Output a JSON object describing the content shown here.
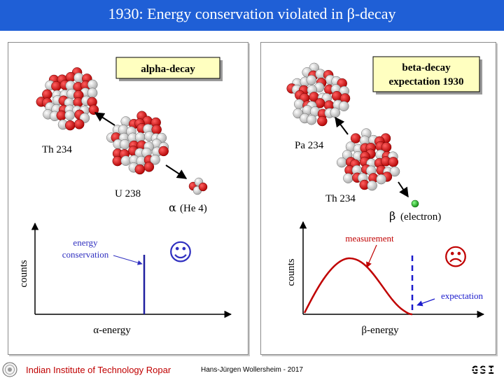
{
  "title": "1930: Energy conservation violated in β-decay",
  "left_panel": {
    "box_label": "alpha-decay",
    "daughter_label": "Th 234",
    "parent_label": "U 238",
    "particle_symbol": "α",
    "particle_label": "(He 4)",
    "annotation": [
      "energy",
      "conservation"
    ],
    "y_axis": "counts",
    "x_axis": "α-energy",
    "face": "☺"
  },
  "right_panel": {
    "box_label": [
      "beta-decay",
      "expectation 1930"
    ],
    "daughter_label": "Pa 234",
    "parent_label": "Th 234",
    "particle_symbol": "β",
    "particle_label": "(electron)",
    "measurement_label": "measurement",
    "expectation_label": "expectation",
    "y_axis": "counts",
    "x_axis": "β-energy",
    "face": "☹"
  },
  "footer": {
    "institute": "Indian Institute of Technology Ropar",
    "author": "Hans-Jürgen Wollersheim - 2017",
    "gsi_logo_text": "GSI"
  },
  "colors": {
    "title_bar": "#1f5fd6",
    "proton": "#cc1111",
    "neutron": "#e6e6e6",
    "axis": "#000000",
    "alpha_line": "#2020a0",
    "annotation_blue": "#3030c0",
    "measurement_red": "#c00000",
    "expectation_blue": "#1a1acc",
    "box_fill": "#ffffc0",
    "electron": "#22bb22",
    "footer_red": "#c00000"
  }
}
